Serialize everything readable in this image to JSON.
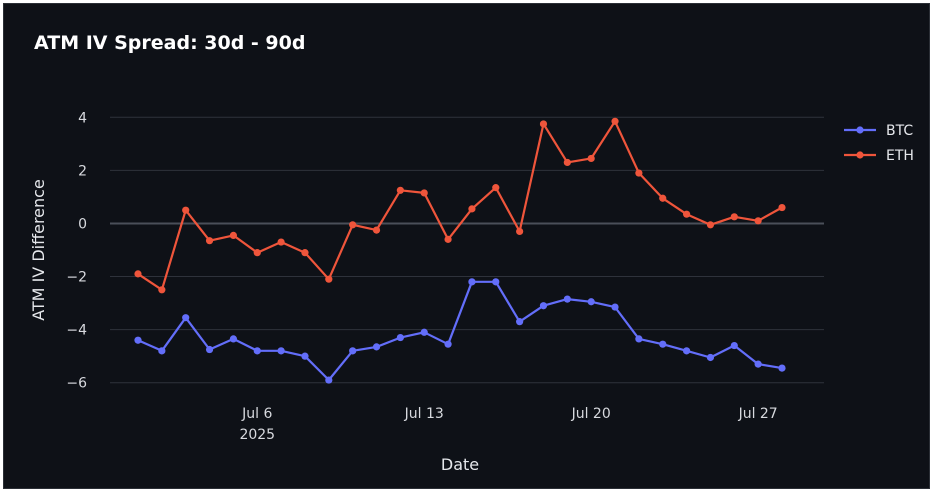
{
  "chart_data": {
    "type": "line",
    "title": "ATM IV Spread: 30d - 90d",
    "xlabel": "Date",
    "ylabel": "ATM IV Difference",
    "x": [
      "2025-07-01",
      "2025-07-02",
      "2025-07-03",
      "2025-07-04",
      "2025-07-05",
      "2025-07-06",
      "2025-07-07",
      "2025-07-08",
      "2025-07-09",
      "2025-07-10",
      "2025-07-11",
      "2025-07-12",
      "2025-07-13",
      "2025-07-14",
      "2025-07-15",
      "2025-07-16",
      "2025-07-17",
      "2025-07-18",
      "2025-07-19",
      "2025-07-20",
      "2025-07-21",
      "2025-07-22",
      "2025-07-23",
      "2025-07-24",
      "2025-07-25",
      "2025-07-26",
      "2025-07-27",
      "2025-07-28"
    ],
    "x_ticks": [
      {
        "date": "2025-07-06",
        "label": "Jul 6",
        "sublabel": "2025"
      },
      {
        "date": "2025-07-13",
        "label": "Jul 13",
        "sublabel": ""
      },
      {
        "date": "2025-07-20",
        "label": "Jul 20",
        "sublabel": ""
      },
      {
        "date": "2025-07-27",
        "label": "Jul 27",
        "sublabel": ""
      }
    ],
    "y_ticks": [
      4,
      2,
      0,
      -2,
      -4,
      -6
    ],
    "y_tick_labels": [
      "4",
      "2",
      "0",
      "−2",
      "−4",
      "−6"
    ],
    "ylim": [
      -6.2,
      4.2
    ],
    "grid": true,
    "legend_position": "top-right",
    "series": [
      {
        "name": "BTC",
        "color": "#636efa",
        "values": [
          -4.4,
          -4.8,
          -3.55,
          -4.75,
          -4.35,
          -4.8,
          -4.8,
          -5.0,
          -5.9,
          -4.8,
          -4.65,
          -4.3,
          -4.1,
          -4.55,
          -2.2,
          -2.2,
          -3.7,
          -3.1,
          -2.85,
          -2.95,
          -3.15,
          -4.35,
          -4.55,
          -4.8,
          -5.05,
          -4.6,
          -5.3,
          -5.45
        ]
      },
      {
        "name": "ETH",
        "color": "#ef553b",
        "values": [
          -1.9,
          -2.5,
          0.5,
          -0.65,
          -0.45,
          -1.1,
          -0.7,
          -1.1,
          -2.1,
          -0.05,
          -0.25,
          1.25,
          1.15,
          -0.6,
          0.55,
          1.35,
          -0.3,
          3.75,
          2.3,
          2.45,
          3.85,
          1.9,
          0.95,
          0.35,
          -0.05,
          0.25,
          0.1,
          0.6
        ]
      }
    ]
  }
}
